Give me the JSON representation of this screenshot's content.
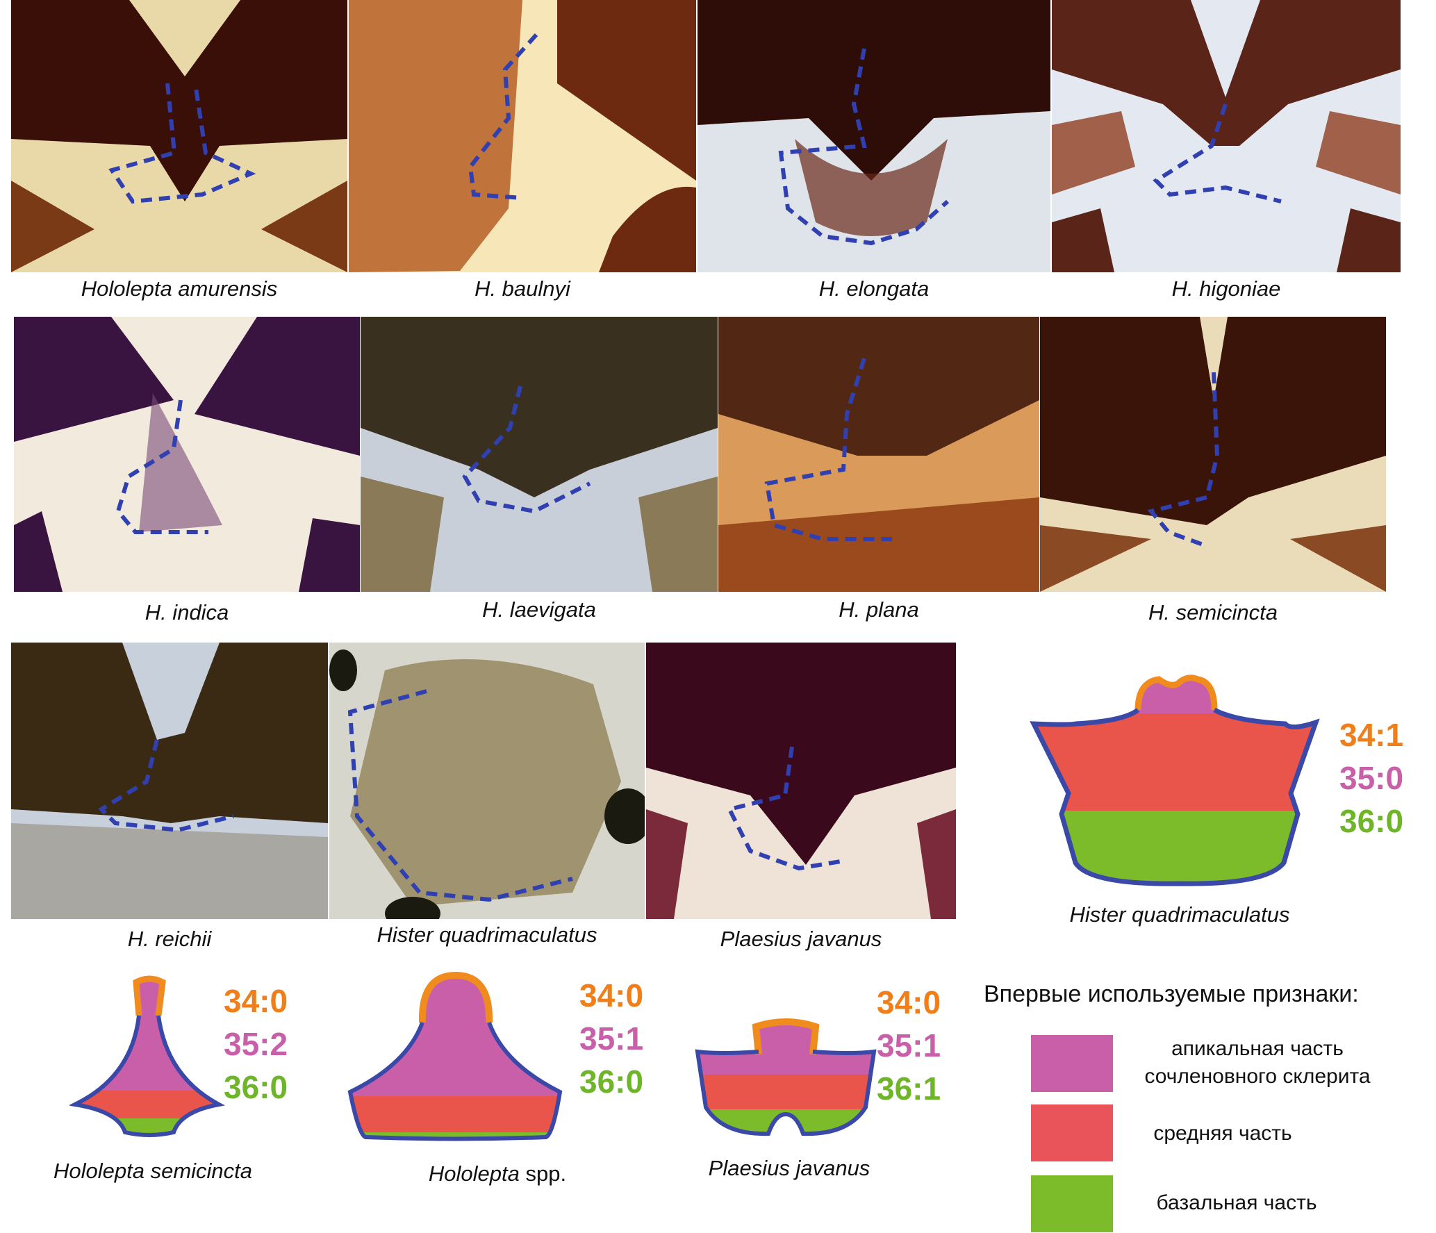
{
  "photos": [
    {
      "name": "Hololepta amurensis",
      "dark": "#3a0f08",
      "mid": "#7a3a16",
      "light": "#e9d9a8"
    },
    {
      "name": "H. baulnyi",
      "dark": "#6e2a10",
      "mid": "#c0733a",
      "light": "#f6e6b8"
    },
    {
      "name": "H. elongata",
      "dark": "#2e0d08",
      "mid": "#6a2a18",
      "light": "#dfe3ea"
    },
    {
      "name": "H. higoniae",
      "dark": "#5a2418",
      "mid": "#a0604a",
      "light": "#e4e8f0"
    },
    {
      "name": "H. indica",
      "dark": "#3a1440",
      "mid": "#7a4a78",
      "light": "#f2eadc"
    },
    {
      "name": "H. laevigata",
      "dark": "#3a3020",
      "mid": "#8a7a58",
      "light": "#c9cfd8"
    },
    {
      "name": "H. plana",
      "dark": "#3a1408",
      "mid": "#9a4a1c",
      "light": "#d99a5a"
    },
    {
      "name": "H. semicincta",
      "dark": "#3a1408",
      "mid": "#8a4a24",
      "light": "#eadcb8"
    },
    {
      "name": "H. reichii",
      "dark": "#3a2a14",
      "mid": "#7a6a48",
      "light": "#c8d0dc"
    },
    {
      "name": "Hister quadrimaculatus",
      "dark": "#4a4630",
      "mid": "#a09470",
      "light": "#d6d6cc"
    },
    {
      "name": "Plaesius javanus",
      "dark": "#3a0a1c",
      "mid": "#7a2a3a",
      "light": "#efe3d8"
    }
  ],
  "diagrams": [
    {
      "caption": "Hister quadrimaculatus",
      "codes": [
        "34:1",
        "35:0",
        "36:0"
      ]
    },
    {
      "caption": "Hololepta semicincta",
      "codes": [
        "34:0",
        "35:2",
        "36:0"
      ]
    },
    {
      "caption_genus": "Hololepta",
      "caption_suffix": " spp.",
      "codes": [
        "34:0",
        "35:1",
        "36:0"
      ]
    },
    {
      "caption": "Plaesius javanus",
      "codes": [
        "34:0",
        "35:1",
        "36:1"
      ]
    }
  ],
  "legend": {
    "title": "Впервые используемые признаки:",
    "items": [
      {
        "label_line1": "апикальная часть",
        "label_line2": "сочленовного склерита",
        "color": "#c95fa8"
      },
      {
        "label_line1": "средняя часть",
        "color": "#e9545a"
      },
      {
        "label_line1": "базальная часть",
        "color": "#7cbc2a"
      }
    ]
  },
  "colors": {
    "outline": "#3a48a8",
    "tip": "#f08c1e",
    "apical": "#c95fa8",
    "middle": "#e9545a",
    "basal": "#7cbc2a",
    "dash": "#3040b0"
  }
}
